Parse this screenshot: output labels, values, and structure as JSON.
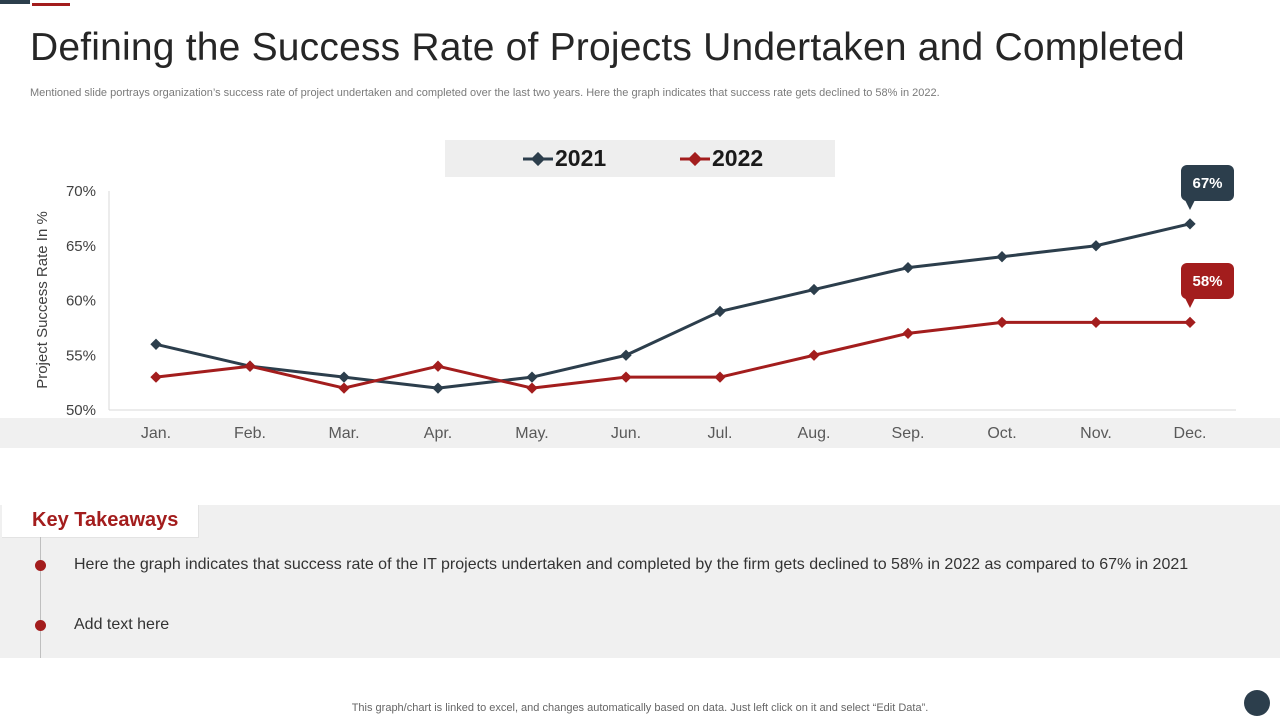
{
  "slide": {
    "title": "Defining the Success Rate of Projects Undertaken and Completed",
    "subtitle": "Mentioned slide portrays organization’s success rate of project undertaken and completed over the last two years. Here the graph indicates that success rate gets declined to 58% in 2022."
  },
  "chart_data": {
    "type": "line",
    "title": "",
    "xlabel": "",
    "ylabel": "Project Success Rate In %",
    "categories": [
      "Jan.",
      "Feb.",
      "Mar.",
      "Apr.",
      "May.",
      "Jun.",
      "Jul.",
      "Aug.",
      "Sep.",
      "Oct.",
      "Nov.",
      "Dec."
    ],
    "ylim": [
      50,
      70
    ],
    "yticks": [
      50,
      55,
      60,
      65,
      70
    ],
    "ytick_labels": [
      "50%",
      "55%",
      "60%",
      "65%",
      "70%"
    ],
    "grid": false,
    "legend_position": "top-center",
    "series": [
      {
        "name": "2021",
        "color": "#2c3e4c",
        "values": [
          56,
          54,
          53,
          52,
          53,
          55,
          59,
          61,
          63,
          64,
          65,
          67
        ]
      },
      {
        "name": "2022",
        "color": "#a31d1d",
        "values": [
          53,
          54,
          52,
          54,
          52,
          53,
          53,
          55,
          57,
          58,
          58,
          58
        ]
      }
    ],
    "annotations": [
      {
        "series": "2021",
        "label": "67%"
      },
      {
        "series": "2022",
        "label": "58%"
      }
    ]
  },
  "takeaways": {
    "title": "Key Takeaways",
    "items": [
      "Here the graph indicates that success rate of the IT projects undertaken and completed by the firm gets declined to 58% in 2022 as compared to 67% in 2021",
      "Add text here"
    ]
  },
  "footer": {
    "note": "This graph/chart is linked to excel,  and changes automatically based on data. Just left click on it and select “Edit Data”."
  }
}
